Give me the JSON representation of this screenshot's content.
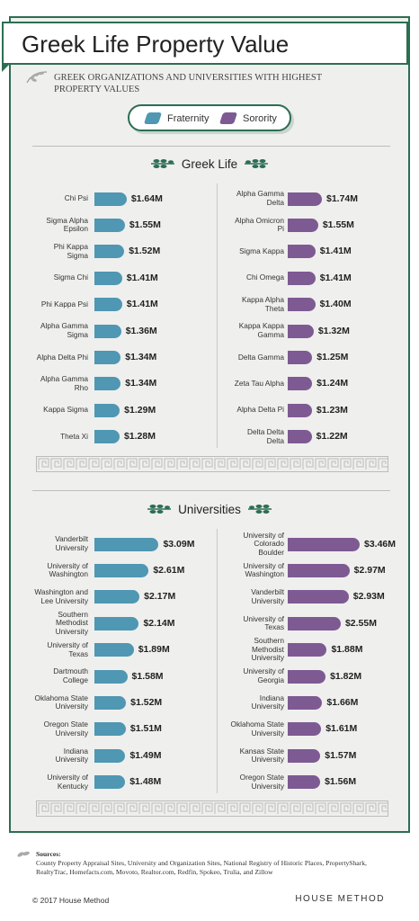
{
  "title": "Greek Life Property Value",
  "subtitle": "GREEK ORGANIZATIONS AND UNIVERSITIES WITH HIGHEST PROPERTY VALUES",
  "legend": {
    "fraternity": "Fraternity",
    "sorority": "Sorority"
  },
  "colors": {
    "fraternity": "#4f97b3",
    "sorority": "#7e5a93",
    "frame": "#2c6e52",
    "background": "#efefee"
  },
  "icons": [
    "laurel-icon",
    "greek-key-border-icon"
  ],
  "sources_label": "Sources:",
  "sources_text": "County Property Appraisal Sites, University and Organization Sites, National Registry of Historic Places, PropertyShark, RealtyTrac, Homefacts.com, Movoto, Realtor.com, Redfin, Spokeo, Trulia, and Zillow",
  "copyright": "© 2017 House Method",
  "brand": "HOUSE METHOD",
  "chart_data": [
    {
      "type": "bar",
      "title": "Greek Life",
      "unit": "$M",
      "series": [
        {
          "name": "Fraternity",
          "categories": [
            "Chi Psi",
            "Sigma Alpha Epsilon",
            "Phi Kappa Sigma",
            "Sigma Chi",
            "Phi Kappa Psi",
            "Alpha Gamma Sigma",
            "Alpha Delta Phi",
            "Alpha Gamma Rho",
            "Kappa Sigma",
            "Theta Xi"
          ],
          "values": [
            1.64,
            1.55,
            1.52,
            1.41,
            1.41,
            1.36,
            1.34,
            1.34,
            1.29,
            1.28
          ],
          "labels": [
            "$1.64M",
            "$1.55M",
            "$1.52M",
            "$1.41M",
            "$1.41M",
            "$1.36M",
            "$1.34M",
            "$1.34M",
            "$1.29M",
            "$1.28M"
          ]
        },
        {
          "name": "Sorority",
          "categories": [
            "Alpha Gamma Delta",
            "Alpha Omicron Pi",
            "Sigma Kappa",
            "Chi Omega",
            "Kappa Alpha Theta",
            "Kappa Kappa Gamma",
            "Delta Gamma",
            "Zeta Tau Alpha",
            "Alpha Delta Pi",
            "Delta Delta Delta"
          ],
          "values": [
            1.74,
            1.55,
            1.41,
            1.41,
            1.4,
            1.32,
            1.25,
            1.24,
            1.23,
            1.22
          ],
          "labels": [
            "$1.74M",
            "$1.55M",
            "$1.41M",
            "$1.41M",
            "$1.40M",
            "$1.32M",
            "$1.25M",
            "$1.24M",
            "$1.23M",
            "$1.22M"
          ]
        }
      ]
    },
    {
      "type": "bar",
      "title": "Universities",
      "unit": "$M",
      "series": [
        {
          "name": "Fraternity",
          "categories": [
            "Vanderbilt University",
            "University of Washington",
            "Washington and Lee University",
            "Southern Methodist University",
            "University of Texas",
            "Dartmouth College",
            "Oklahoma State University",
            "Oregon State University",
            "Indiana University",
            "University of Kentucky"
          ],
          "values": [
            3.09,
            2.61,
            2.17,
            2.14,
            1.89,
            1.58,
            1.52,
            1.51,
            1.49,
            1.48
          ],
          "labels": [
            "$3.09M",
            "$2.61M",
            "$2.17M",
            "$2.14M",
            "$1.89M",
            "$1.58M",
            "$1.52M",
            "$1.51M",
            "$1.49M",
            "$1.48M"
          ]
        },
        {
          "name": "Sorority",
          "categories": [
            "University of Colorado Boulder",
            "University of Washington",
            "Vanderbilt University",
            "University of Texas",
            "Southern Methodist University",
            "University of Georgia",
            "Indiana University",
            "Oklahoma State University",
            "Kansas State University",
            "Oregon State University"
          ],
          "values": [
            3.46,
            2.97,
            2.93,
            2.55,
            1.88,
            1.82,
            1.66,
            1.61,
            1.57,
            1.56
          ],
          "labels": [
            "$3.46M",
            "$2.97M",
            "$2.93M",
            "$2.55M",
            "$1.88M",
            "$1.82M",
            "$1.66M",
            "$1.61M",
            "$1.57M",
            "$1.56M"
          ]
        }
      ]
    }
  ]
}
